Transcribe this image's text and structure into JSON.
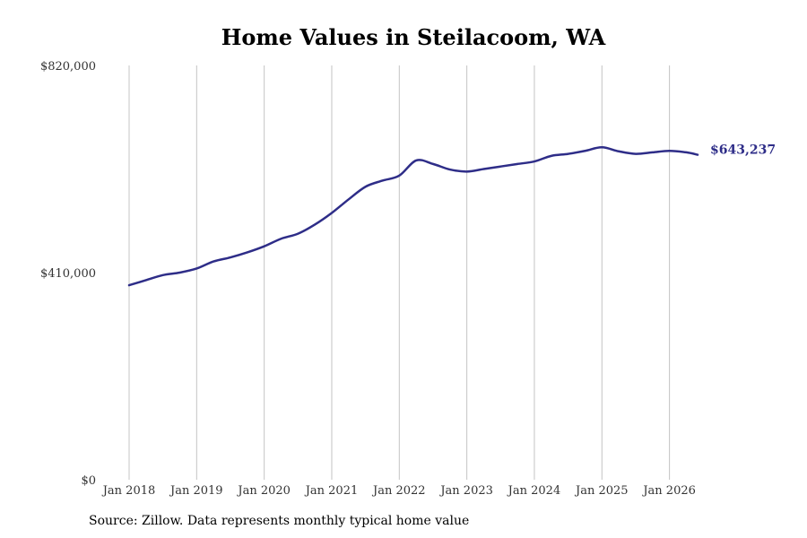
{
  "chart_data": {
    "type": "line",
    "title": "Home Values in Steilacoom, WA",
    "footer": "Source: Zillow. Data represents monthly typical home value",
    "xlabel": "",
    "ylabel": "",
    "ylim": [
      0,
      820000
    ],
    "xlim": [
      "2018-01",
      "2026-06"
    ],
    "y_ticks": [
      0,
      410000,
      820000
    ],
    "y_tick_labels": [
      "$0",
      "$410,000",
      "$820,000"
    ],
    "x_ticks": [
      "2018-01",
      "2019-01",
      "2020-01",
      "2021-01",
      "2022-01",
      "2023-01",
      "2024-01",
      "2025-01",
      "2026-01"
    ],
    "x_tick_labels": [
      "Jan 2018",
      "Jan 2019",
      "Jan 2020",
      "Jan 2021",
      "Jan 2022",
      "Jan 2023",
      "Jan 2024",
      "Jan 2025",
      "Jan 2026"
    ],
    "grid": "vertical",
    "line_color": "#2e2d88",
    "end_label": "$643,237",
    "series": [
      {
        "x": [
          "2018-01",
          "2018-04",
          "2018-07",
          "2018-10",
          "2019-01",
          "2019-04",
          "2019-07",
          "2019-10",
          "2020-01",
          "2020-04",
          "2020-07",
          "2020-10",
          "2021-01",
          "2021-04",
          "2021-07",
          "2021-10",
          "2022-01",
          "2022-04",
          "2022-07",
          "2022-10",
          "2023-01",
          "2023-04",
          "2023-07",
          "2023-10",
          "2024-01",
          "2024-04",
          "2024-07",
          "2024-10",
          "2025-01",
          "2025-04",
          "2025-07",
          "2025-10",
          "2026-01",
          "2026-04",
          "2026-06"
        ],
        "y": [
          385000,
          395000,
          405000,
          410000,
          418000,
          432000,
          440000,
          450000,
          462000,
          477000,
          487000,
          505000,
          528000,
          555000,
          580000,
          592000,
          602000,
          632000,
          625000,
          614000,
          610000,
          615000,
          620000,
          625000,
          630000,
          641000,
          645000,
          651000,
          658000,
          650000,
          645000,
          648000,
          651000,
          648000,
          643237
        ]
      }
    ]
  }
}
